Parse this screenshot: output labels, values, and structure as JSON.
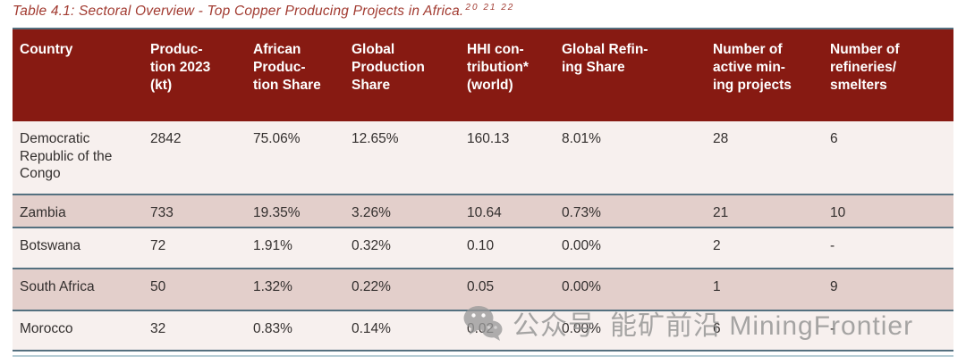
{
  "title": {
    "text": "Table 4.1: Sectoral Overview - Top Copper Producing Projects in Africa.",
    "superscript": "20 21 22"
  },
  "table": {
    "columns": [
      "Country",
      "Produc-\ntion 2023\n(kt)",
      "African\nProduc-\ntion Share",
      "Global\nProduction\nShare",
      "HHI con-\ntribution*\n(world)",
      "Global Refin-\ning Share",
      "Number of\nactive min-\ning projects",
      "Number of\nrefineries/\nsmelters"
    ],
    "rows": [
      [
        "Democratic Republic of the Congo",
        "2842",
        "75.06%",
        "12.65%",
        "160.13",
        "8.01%",
        "28",
        "6"
      ],
      [
        "Zambia",
        "733",
        "19.35%",
        "3.26%",
        "10.64",
        "0.73%",
        "21",
        "10"
      ],
      [
        "Botswana",
        "72",
        "1.91%",
        "0.32%",
        "0.10",
        "0.00%",
        "2",
        "-"
      ],
      [
        "South Africa",
        "50",
        "1.32%",
        "0.22%",
        "0.05",
        "0.00%",
        "1",
        "9"
      ],
      [
        "Morocco",
        "32",
        "0.83%",
        "0.14%",
        "0.02",
        "0.00%",
        "6",
        "-"
      ]
    ]
  },
  "watermark": {
    "icon": "wechat-icon",
    "text_left": "公众号",
    "text_right": "能矿前沿 MiningFrontier"
  },
  "colors": {
    "header_bg": "#871a12",
    "title_text": "#a23b31",
    "row_light": "#f7f0ee",
    "row_shaded": "#e3cfcb",
    "separator": "#54707f",
    "separator_light": "#b6cdd5",
    "cell_text": "#332f2e",
    "watermark_gray": "#8f8f8f"
  }
}
